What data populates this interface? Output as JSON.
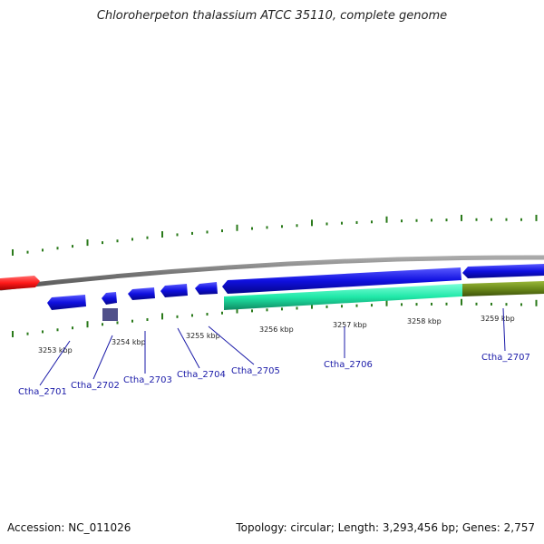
{
  "title": "Chloroherpeton thalassium ATCC 35110, complete genome",
  "footer": {
    "accession": "Accession: NC_011026",
    "topology": "Topology: circular; Length: 3,293,456 bp; Genes: 2,757"
  },
  "kbp_labels": [
    "3253 kbp",
    "3254 kbp",
    "3255 kbp",
    "3256 kbp",
    "3257 kbp",
    "3258 kbp",
    "3259 kbp"
  ],
  "gene_labels": [
    "Ctha_2701",
    "Ctha_2702",
    "Ctha_2703",
    "Ctha_2704",
    "Ctha_2705",
    "Ctha_2706",
    "Ctha_2707"
  ],
  "colors": {
    "backbone": "#888888",
    "forward_gene": "#ff2020",
    "reverse_gene": "#1010e0",
    "feature_teal": "#20e8a8",
    "feature_olive": "#6b8a1a",
    "feature_purple": "#50508a",
    "tick": "#2a7a1a",
    "label": "#1a1aa8"
  },
  "icons": [
    "forward-gene-arrow",
    "reverse-gene-arrow"
  ]
}
